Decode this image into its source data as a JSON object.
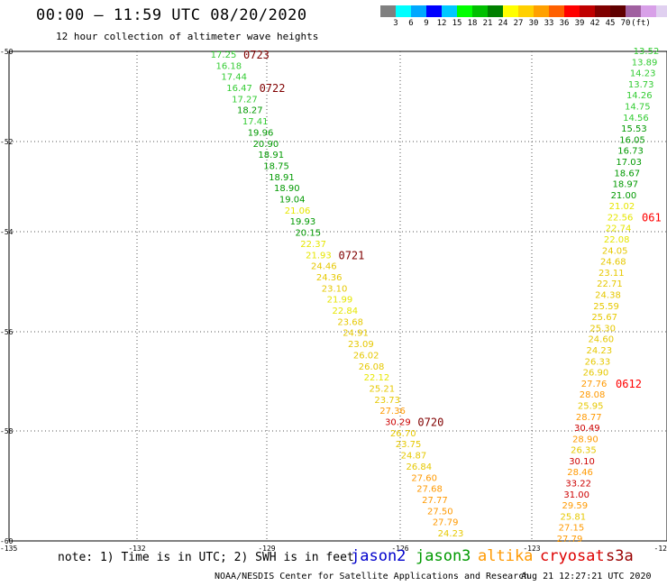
{
  "header": {
    "title": "00:00 – 11:59 UTC 08/20/2020",
    "subtitle": "12 hour collection of altimeter wave heights"
  },
  "color_scale": {
    "colors": [
      "#808080",
      "#00ffff",
      "#00a8ff",
      "#0000ff",
      "#00c8ff",
      "#00ff00",
      "#00c000",
      "#008000",
      "#ffff00",
      "#ffd000",
      "#ffa000",
      "#ff6000",
      "#ff0000",
      "#c00000",
      "#800000",
      "#600000",
      "#a060a0",
      "#d8a0e8",
      "#e0d0f0",
      "#000000"
    ],
    "labels": [
      "3",
      "6",
      "9",
      "12",
      "15",
      "18",
      "21",
      "24",
      "27",
      "30",
      "33",
      "36",
      "39",
      "42",
      "45",
      "70",
      "(ft)"
    ]
  },
  "map_axes": {
    "lat_labels": [
      "-50",
      "-52",
      "-54",
      "-56",
      "-58",
      "-60"
    ],
    "lon_labels": [
      "-135",
      "-132",
      "-129",
      "-126",
      "-123",
      "-12"
    ]
  },
  "tracks": [
    {
      "name": "west",
      "points": [
        {
          "value": "17.25",
          "color": "#33cc33"
        },
        {
          "value": "16.18",
          "color": "#33cc33"
        },
        {
          "value": "17.44",
          "color": "#33cc33"
        },
        {
          "value": "16.47",
          "color": "#33cc33"
        },
        {
          "value": "17.27",
          "color": "#33cc33"
        },
        {
          "value": "18.27",
          "color": "#009900"
        },
        {
          "value": "17.41",
          "color": "#33cc33"
        },
        {
          "value": "19.96",
          "color": "#009900"
        },
        {
          "value": "20.90",
          "color": "#009900"
        },
        {
          "value": "18.91",
          "color": "#009900"
        },
        {
          "value": "18.75",
          "color": "#009900"
        },
        {
          "value": "18.91",
          "color": "#009900"
        },
        {
          "value": "18.90",
          "color": "#009900"
        },
        {
          "value": "19.04",
          "color": "#009900"
        },
        {
          "value": "21.06",
          "color": "#e6e600"
        },
        {
          "value": "19.93",
          "color": "#009900"
        },
        {
          "value": "20.15",
          "color": "#009900"
        },
        {
          "value": "22.37",
          "color": "#e6e600"
        },
        {
          "value": "21.93",
          "color": "#e6e600"
        },
        {
          "value": "24.46",
          "color": "#e6c800"
        },
        {
          "value": "24.36",
          "color": "#e6c800"
        },
        {
          "value": "23.10",
          "color": "#e6c800"
        },
        {
          "value": "21.99",
          "color": "#e6e600"
        },
        {
          "value": "22.84",
          "color": "#e6e600"
        },
        {
          "value": "23.68",
          "color": "#e6c800"
        },
        {
          "value": "24.91",
          "color": "#e6c800"
        },
        {
          "value": "23.09",
          "color": "#e6c800"
        },
        {
          "value": "26.02",
          "color": "#e6c800"
        },
        {
          "value": "26.08",
          "color": "#e6c800"
        },
        {
          "value": "22.12",
          "color": "#e6e600"
        },
        {
          "value": "25.21",
          "color": "#e6c800"
        },
        {
          "value": "23.73",
          "color": "#e6c800"
        },
        {
          "value": "27.36",
          "color": "#ff9900"
        },
        {
          "value": "30.29",
          "color": "#cc0000"
        },
        {
          "value": "26.70",
          "color": "#e6c800"
        },
        {
          "value": "23.75",
          "color": "#e6c800"
        },
        {
          "value": "24.87",
          "color": "#e6c800"
        },
        {
          "value": "26.84",
          "color": "#e6c800"
        },
        {
          "value": "27.60",
          "color": "#ff9900"
        },
        {
          "value": "27.68",
          "color": "#ff9900"
        },
        {
          "value": "27.77",
          "color": "#ff9900"
        },
        {
          "value": "27.50",
          "color": "#ff9900"
        },
        {
          "value": "27.79",
          "color": "#ff9900"
        },
        {
          "value": "24.23",
          "color": "#e6c800"
        }
      ],
      "time_labels": [
        {
          "text": "0723",
          "color": "#800000",
          "index": 0
        },
        {
          "text": "0722",
          "color": "#800000",
          "index": 3
        },
        {
          "text": "0721",
          "color": "#800000",
          "index": 18
        },
        {
          "text": "0720",
          "color": "#800000",
          "index": 33
        }
      ]
    },
    {
      "name": "east",
      "points": [
        {
          "value": "13.52",
          "color": "#33cc33"
        },
        {
          "value": "13.89",
          "color": "#33cc33"
        },
        {
          "value": "14.23",
          "color": "#33cc33"
        },
        {
          "value": "13.73",
          "color": "#33cc33"
        },
        {
          "value": "14.26",
          "color": "#33cc33"
        },
        {
          "value": "14.75",
          "color": "#33cc33"
        },
        {
          "value": "14.56",
          "color": "#33cc33"
        },
        {
          "value": "15.53",
          "color": "#009900"
        },
        {
          "value": "16.05",
          "color": "#009900"
        },
        {
          "value": "16.73",
          "color": "#009900"
        },
        {
          "value": "17.03",
          "color": "#009900"
        },
        {
          "value": "18.67",
          "color": "#009900"
        },
        {
          "value": "18.97",
          "color": "#009900"
        },
        {
          "value": "21.00",
          "color": "#009900"
        },
        {
          "value": "21.02",
          "color": "#e6e600"
        },
        {
          "value": "22.56",
          "color": "#e6e600"
        },
        {
          "value": "22.74",
          "color": "#e6e600"
        },
        {
          "value": "22.08",
          "color": "#e6e600"
        },
        {
          "value": "24.05",
          "color": "#e6c800"
        },
        {
          "value": "24.68",
          "color": "#e6c800"
        },
        {
          "value": "23.11",
          "color": "#e6c800"
        },
        {
          "value": "22.71",
          "color": "#e6c800"
        },
        {
          "value": "24.38",
          "color": "#e6c800"
        },
        {
          "value": "25.59",
          "color": "#e6c800"
        },
        {
          "value": "25.67",
          "color": "#e6c800"
        },
        {
          "value": "25.30",
          "color": "#e6c800"
        },
        {
          "value": "24.60",
          "color": "#e6c800"
        },
        {
          "value": "24.23",
          "color": "#e6c800"
        },
        {
          "value": "26.33",
          "color": "#e6c800"
        },
        {
          "value": "26.90",
          "color": "#e6c800"
        },
        {
          "value": "27.76",
          "color": "#ff9900"
        },
        {
          "value": "28.08",
          "color": "#ff9900"
        },
        {
          "value": "25.95",
          "color": "#e6c800"
        },
        {
          "value": "28.77",
          "color": "#ff9900"
        },
        {
          "value": "30.49",
          "color": "#cc0000"
        },
        {
          "value": "28.90",
          "color": "#ff9900"
        },
        {
          "value": "26.35",
          "color": "#e6c800"
        },
        {
          "value": "30.10",
          "color": "#cc0000"
        },
        {
          "value": "28.46",
          "color": "#ff9900"
        },
        {
          "value": "33.22",
          "color": "#cc0000"
        },
        {
          "value": "31.00",
          "color": "#cc0000"
        },
        {
          "value": "29.59",
          "color": "#ff9900"
        },
        {
          "value": "25.81",
          "color": "#e6c800"
        },
        {
          "value": "27.15",
          "color": "#ff9900"
        },
        {
          "value": "27.79",
          "color": "#ff9900"
        }
      ],
      "time_labels": [
        {
          "text": "061",
          "color": "#ff0000",
          "index": 15
        },
        {
          "text": "0612",
          "color": "#ff0000",
          "index": 30
        }
      ]
    }
  ],
  "footer": {
    "note": "note: 1) Time is in UTC; 2) SWH is in feet",
    "satellites": [
      {
        "name": "jason2",
        "color": "#0000cc"
      },
      {
        "name": "jason3",
        "color": "#009900"
      },
      {
        "name": "altika",
        "color": "#ff9900"
      },
      {
        "name": "cryosat",
        "color": "#dd0000"
      },
      {
        "name": "s3a",
        "color": "#990000"
      }
    ],
    "credit": "NOAA/NESDIS Center for Satellite Applications and Research",
    "timestamp": "Aug 21 12:27:21 UTC 2020"
  }
}
